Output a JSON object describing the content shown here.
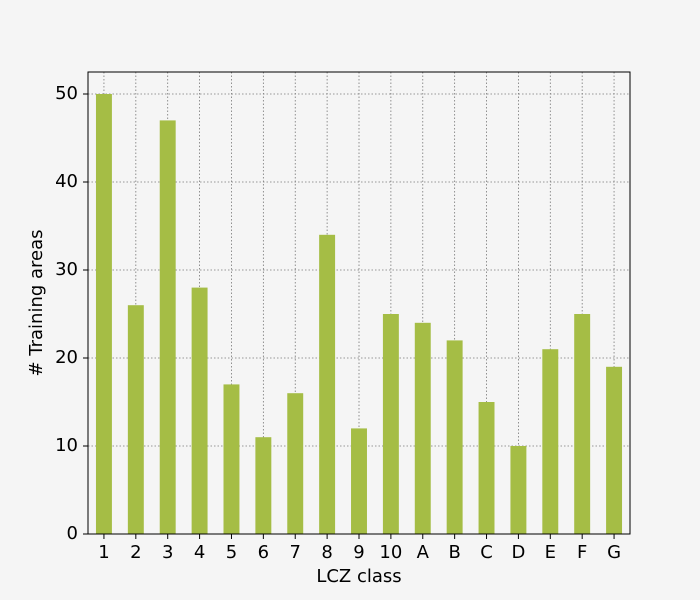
{
  "chart_data": {
    "type": "bar",
    "xlabel": "LCZ class",
    "ylabel": "# Training areas",
    "categories": [
      "1",
      "2",
      "3",
      "4",
      "5",
      "6",
      "7",
      "8",
      "9",
      "10",
      "A",
      "B",
      "C",
      "D",
      "E",
      "F",
      "G"
    ],
    "values": [
      50,
      26,
      47,
      28,
      17,
      11,
      16,
      34,
      12,
      25,
      24,
      22,
      15,
      10,
      21,
      25,
      19
    ],
    "color": "#a5bd45",
    "ylim": [
      0,
      52.5
    ],
    "yticks": [
      0,
      10,
      20,
      30,
      40,
      50
    ],
    "grid": true
  }
}
